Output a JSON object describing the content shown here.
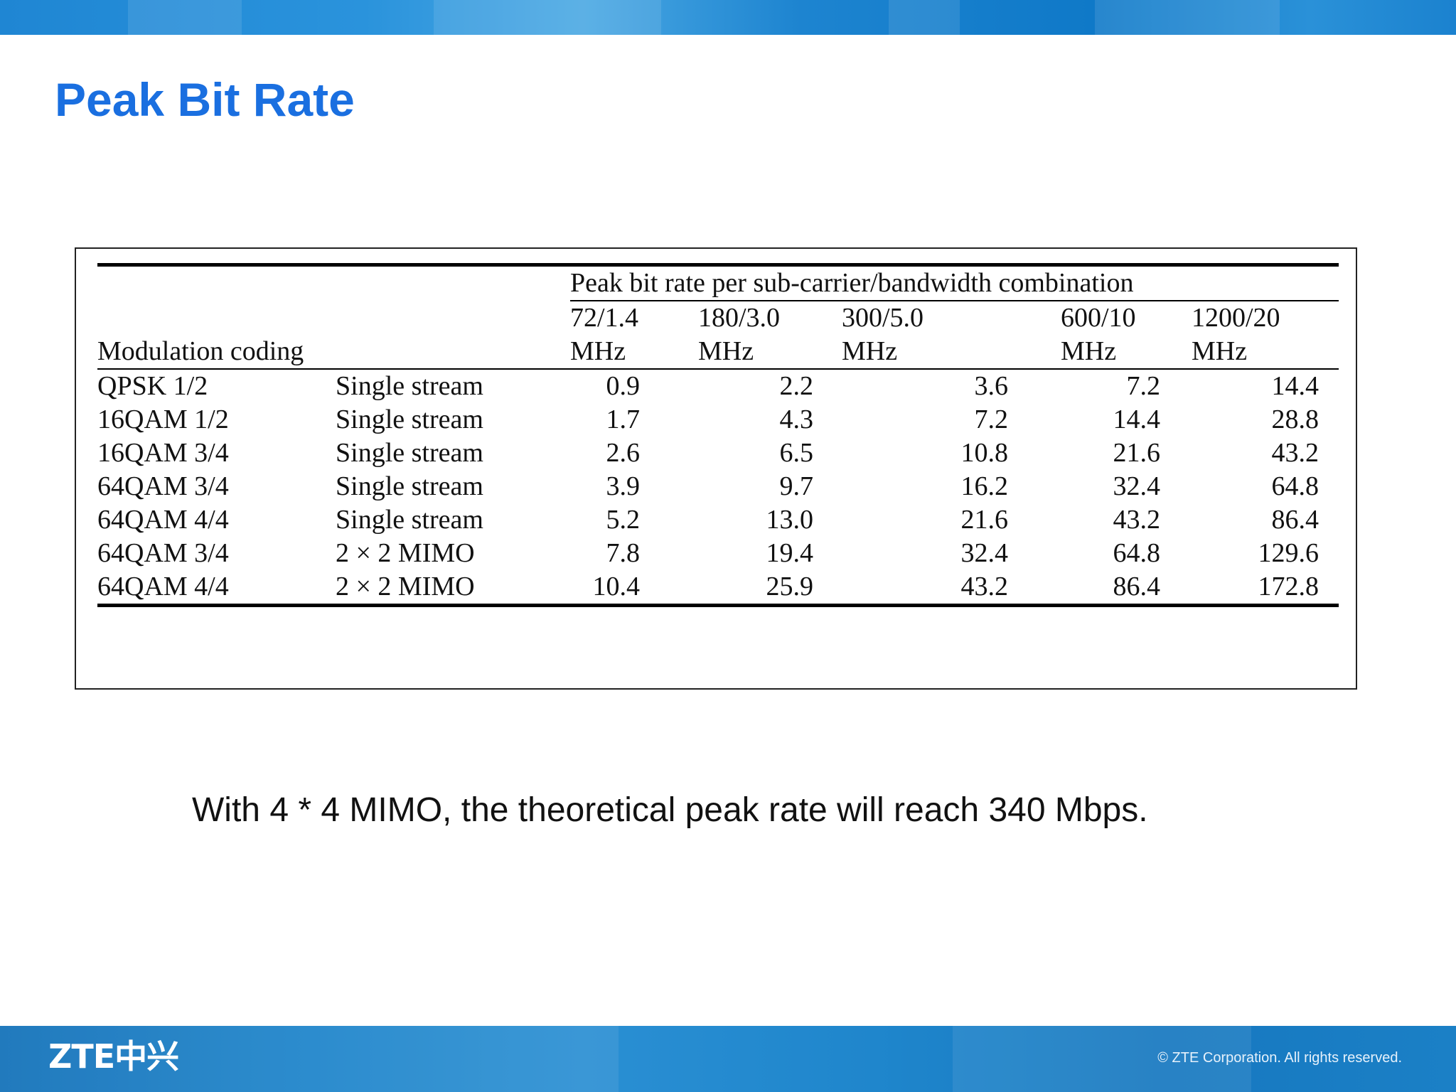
{
  "slide": {
    "title": "Peak Bit Rate",
    "footnote": "With 4 * 4 MIMO, the theoretical peak rate will reach 340 Mbps."
  },
  "table": {
    "group_header": "Peak bit rate per sub-carrier/bandwidth combination",
    "row_header": "Modulation coding",
    "columns": [
      {
        "line1": "72/1.4",
        "line2": "MHz"
      },
      {
        "line1": "180/3.0",
        "line2": "MHz"
      },
      {
        "line1": "300/5.0",
        "line2": "MHz"
      },
      {
        "line1": "600/10",
        "line2": "MHz"
      },
      {
        "line1": "1200/20",
        "line2": "MHz"
      }
    ],
    "rows": [
      {
        "modulation": "QPSK 1/2",
        "stream": "Single stream",
        "values": [
          "0.9",
          "2.2",
          "3.6",
          "7.2",
          "14.4"
        ]
      },
      {
        "modulation": "16QAM 1/2",
        "stream": "Single stream",
        "values": [
          "1.7",
          "4.3",
          "7.2",
          "14.4",
          "28.8"
        ]
      },
      {
        "modulation": "16QAM 3/4",
        "stream": "Single stream",
        "values": [
          "2.6",
          "6.5",
          "10.8",
          "21.6",
          "43.2"
        ]
      },
      {
        "modulation": "64QAM 3/4",
        "stream": "Single stream",
        "values": [
          "3.9",
          "9.7",
          "16.2",
          "32.4",
          "64.8"
        ]
      },
      {
        "modulation": "64QAM 4/4",
        "stream": "Single stream",
        "values": [
          "5.2",
          "13.0",
          "21.6",
          "43.2",
          "86.4"
        ]
      },
      {
        "modulation": "64QAM 3/4",
        "stream": "2 × 2 MIMO",
        "values": [
          "7.8",
          "19.4",
          "32.4",
          "64.8",
          "129.6"
        ]
      },
      {
        "modulation": "64QAM 4/4",
        "stream": "2 × 2 MIMO",
        "values": [
          "10.4",
          "25.9",
          "43.2",
          "86.4",
          "172.8"
        ]
      }
    ]
  },
  "footer": {
    "logo": "ZTE中兴",
    "copyright": "© ZTE Corporation. All rights reserved."
  },
  "colors": {
    "title": "#1a6fe0",
    "banner": "#1f86d3"
  }
}
